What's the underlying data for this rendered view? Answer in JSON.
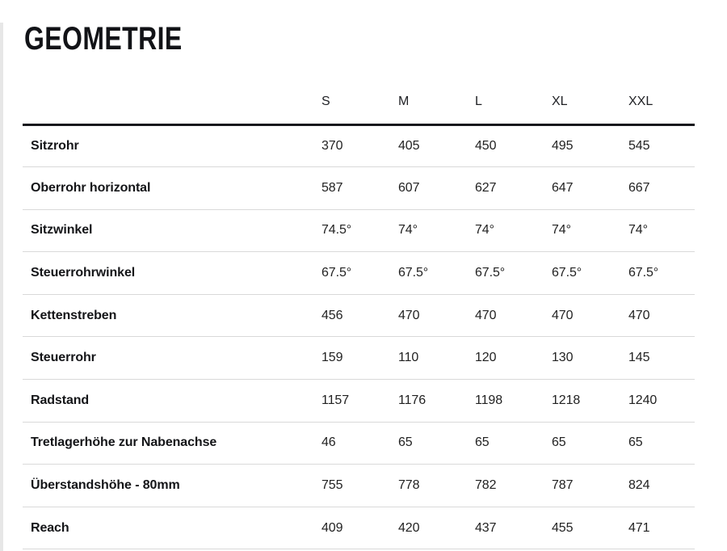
{
  "page": {
    "title": "GEOMETRIE"
  },
  "colors": {
    "background": "#ffffff",
    "text": "#141518",
    "value_text": "#222222",
    "heavy_rule": "#17181c",
    "divider": "#d9d9d9",
    "left_edge": "#e7e7e7"
  },
  "table": {
    "columns": [
      "S",
      "M",
      "L",
      "XL",
      "XXL"
    ],
    "rows": [
      {
        "label": "Sitzrohr",
        "values": [
          "370",
          "405",
          "450",
          "495",
          "545"
        ]
      },
      {
        "label": "Oberrohr horizontal",
        "values": [
          "587",
          "607",
          "627",
          "647",
          "667"
        ]
      },
      {
        "label": "Sitzwinkel",
        "values": [
          "74.5°",
          "74°",
          "74°",
          "74°",
          "74°"
        ]
      },
      {
        "label": "Steuerrohrwinkel",
        "values": [
          "67.5°",
          "67.5°",
          "67.5°",
          "67.5°",
          "67.5°"
        ]
      },
      {
        "label": "Kettenstreben",
        "values": [
          "456",
          "470",
          "470",
          "470",
          "470"
        ]
      },
      {
        "label": "Steuerrohr",
        "values": [
          "159",
          "110",
          "120",
          "130",
          "145"
        ]
      },
      {
        "label": "Radstand",
        "values": [
          "1157",
          "1176",
          "1198",
          "1218",
          "1240"
        ]
      },
      {
        "label": "Tretlagerhöhe zur Nabenachse",
        "values": [
          "46",
          "65",
          "65",
          "65",
          "65"
        ]
      },
      {
        "label": "Überstandshöhe - 80mm",
        "values": [
          "755",
          "778",
          "782",
          "787",
          "824"
        ]
      },
      {
        "label": "Reach",
        "values": [
          "409",
          "420",
          "437",
          "455",
          "471"
        ]
      }
    ]
  },
  "chart_data": {
    "type": "table",
    "title": "GEOMETRIE",
    "columns": [
      "",
      "S",
      "M",
      "L",
      "XL",
      "XXL"
    ],
    "rows": [
      [
        "Sitzrohr",
        "370",
        "405",
        "450",
        "495",
        "545"
      ],
      [
        "Oberrohr horizontal",
        "587",
        "607",
        "627",
        "647",
        "667"
      ],
      [
        "Sitzwinkel",
        "74.5°",
        "74°",
        "74°",
        "74°",
        "74°"
      ],
      [
        "Steuerrohrwinkel",
        "67.5°",
        "67.5°",
        "67.5°",
        "67.5°",
        "67.5°"
      ],
      [
        "Kettenstreben",
        "456",
        "470",
        "470",
        "470",
        "470"
      ],
      [
        "Steuerrohr",
        "159",
        "110",
        "120",
        "130",
        "145"
      ],
      [
        "Radstand",
        "1157",
        "1176",
        "1198",
        "1218",
        "1240"
      ],
      [
        "Tretlagerhöhe zur Nabenachse",
        "46",
        "65",
        "65",
        "65",
        "65"
      ],
      [
        "Überstandshöhe - 80mm",
        "755",
        "778",
        "782",
        "787",
        "824"
      ],
      [
        "Reach",
        "409",
        "420",
        "437",
        "455",
        "471"
      ]
    ]
  }
}
